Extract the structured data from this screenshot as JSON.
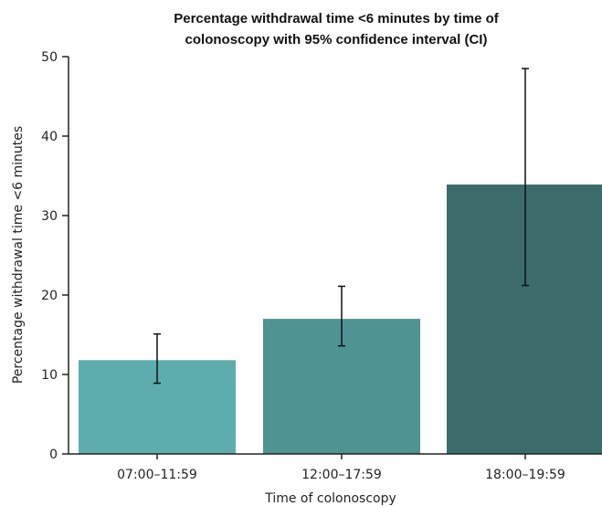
{
  "chart_data": {
    "type": "bar",
    "title_lines": [
      "Percentage withdrawal time <6 minutes by time of",
      "colonoscopy with 95% confidence interval (CI)"
    ],
    "xlabel": "Time of colonoscopy",
    "ylabel": "Percentage withdrawal time <6 minutes",
    "categories": [
      "07:00–11:59",
      "12:00–17:59",
      "18:00–19:59"
    ],
    "values": [
      11.8,
      17.0,
      33.9
    ],
    "ci_lower": [
      8.9,
      13.6,
      21.2
    ],
    "ci_upper": [
      15.1,
      21.1,
      48.5
    ],
    "bar_colors": [
      "#5eadae",
      "#4f9393",
      "#3b6b6b"
    ],
    "ylim": [
      0,
      50
    ],
    "yticks": [
      0,
      10,
      20,
      30,
      40,
      50
    ],
    "grid": false,
    "legend": "none"
  }
}
